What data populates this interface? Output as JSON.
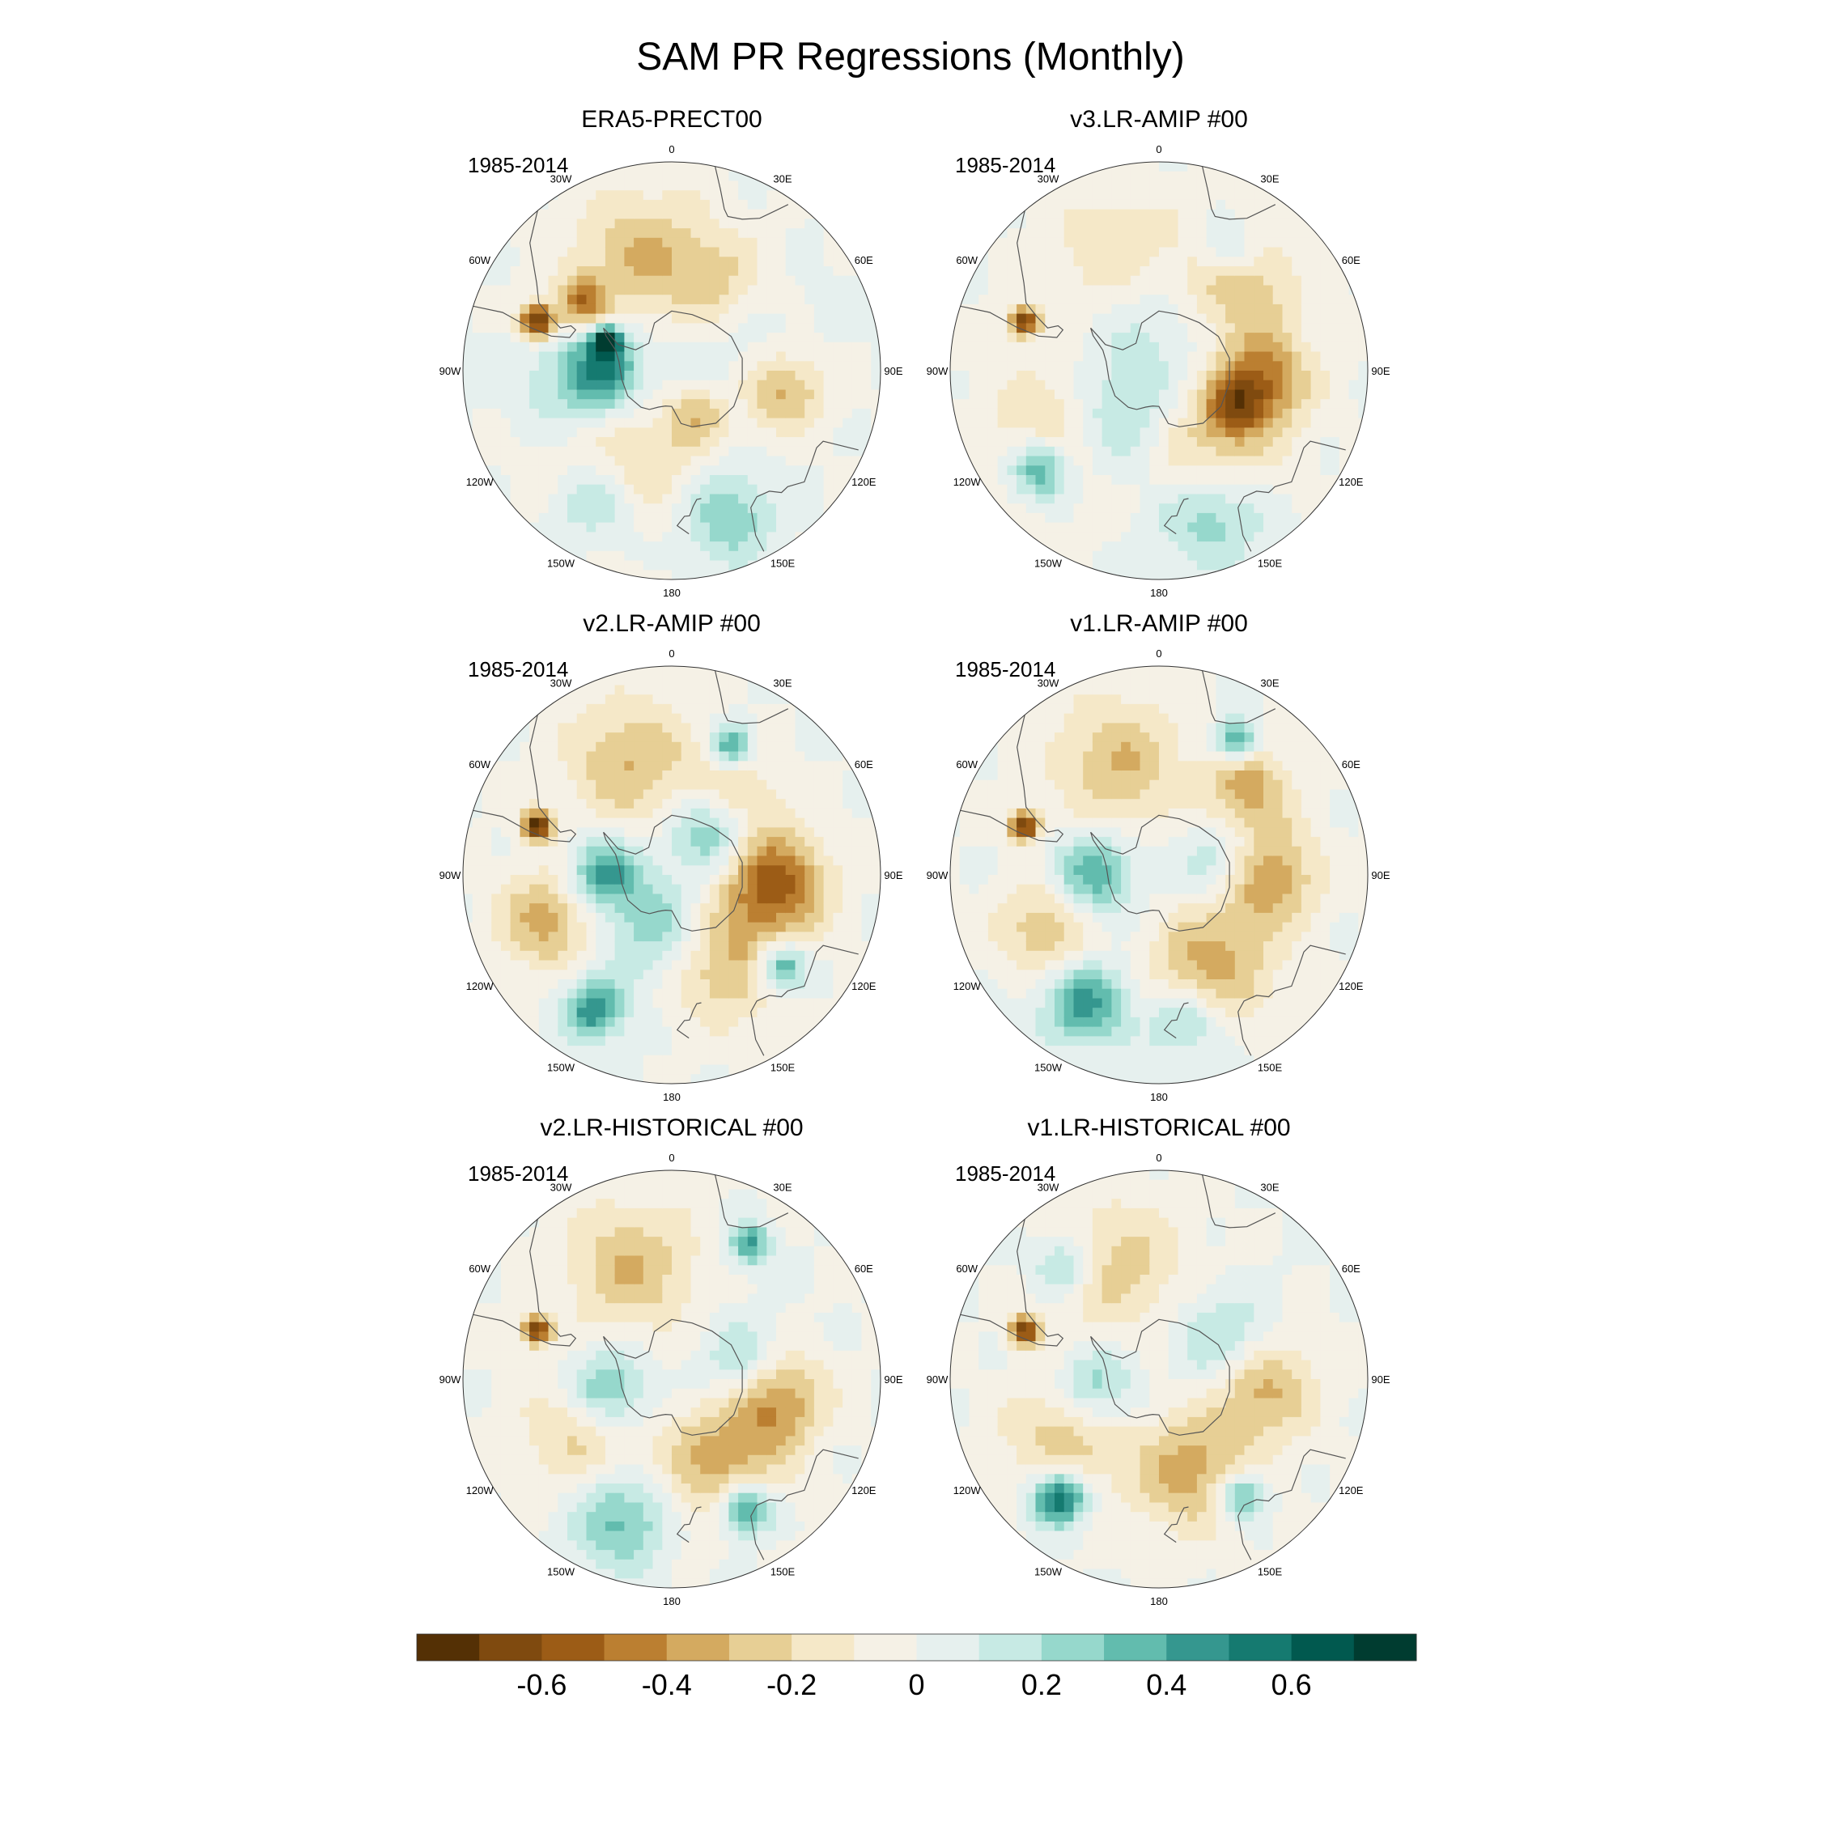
{
  "figure": {
    "title": "SAM PR Regressions (Monthly)"
  },
  "chart_data": {
    "type": "polar-contour-maps",
    "projection": "south-polar-stereographic",
    "variable": "PR",
    "lon_labels": [
      "0",
      "30E",
      "60E",
      "90E",
      "120E",
      "150E",
      "180",
      "150W",
      "120W",
      "90W",
      "60W",
      "30W"
    ],
    "colorbar": {
      "ticks": [
        "-0.6",
        "-0.4",
        "-0.2",
        "0",
        "0.2",
        "0.4",
        "0.6"
      ],
      "levels": [
        -0.7,
        -0.6,
        -0.5,
        -0.4,
        -0.3,
        -0.2,
        -0.1,
        0,
        0.1,
        0.2,
        0.3,
        0.4,
        0.5,
        0.6,
        0.7
      ],
      "colors": [
        "#543005",
        "#7f4a0f",
        "#9c5c16",
        "#bb7f31",
        "#d4aa60",
        "#e7cf95",
        "#f5e8c8",
        "#f5f1e6",
        "#e6f0ee",
        "#c7eae4",
        "#96d8cc",
        "#62bcae",
        "#35978f",
        "#157a70",
        "#01594f",
        "#003c30"
      ]
    },
    "panels": [
      {
        "title": "ERA5-PRECT00",
        "period": "1985-2014",
        "features": [
          {
            "lat": -42,
            "lon": -70,
            "v": -0.75,
            "r": 0.06
          },
          {
            "lat": -52,
            "lon": -53,
            "v": -0.45,
            "r": 0.09
          },
          {
            "lat": -66,
            "lon": -66,
            "v": 0.7,
            "r": 0.05
          },
          {
            "lat": -50,
            "lon": -15,
            "v": -0.3,
            "r": 0.22
          },
          {
            "lat": -57,
            "lon": 30,
            "v": -0.25,
            "r": 0.18
          },
          {
            "lat": -52,
            "lon": 100,
            "v": -0.35,
            "r": 0.14
          },
          {
            "lat": -55,
            "lon": -150,
            "v": -0.3,
            "r": 0.25
          },
          {
            "lat": -60,
            "lon": -100,
            "v": 0.3,
            "r": 0.2
          },
          {
            "lat": -68,
            "lon": -90,
            "v": 0.35,
            "r": 0.12
          },
          {
            "lat": -40,
            "lon": -150,
            "v": 0.35,
            "r": 0.15
          },
          {
            "lat": -38,
            "lon": 160,
            "v": 0.3,
            "r": 0.16
          },
          {
            "lat": -65,
            "lon": 60,
            "v": 0.12,
            "r": 0.25
          },
          {
            "lat": -72,
            "lon": 150,
            "v": -0.25,
            "r": 0.1
          }
        ]
      },
      {
        "title": "v3.LR-AMIP  #00",
        "period": "1985-2014",
        "features": [
          {
            "lat": -42,
            "lon": -70,
            "v": -0.7,
            "r": 0.05
          },
          {
            "lat": -55,
            "lon": 95,
            "v": -0.45,
            "r": 0.16
          },
          {
            "lat": -52,
            "lon": 40,
            "v": -0.35,
            "r": 0.2
          },
          {
            "lat": -50,
            "lon": -20,
            "v": -0.25,
            "r": 0.22
          },
          {
            "lat": -57,
            "lon": 150,
            "v": -0.3,
            "r": 0.22
          },
          {
            "lat": -62,
            "lon": 115,
            "v": -0.35,
            "r": 0.1
          },
          {
            "lat": -50,
            "lon": -120,
            "v": -0.25,
            "r": 0.22
          },
          {
            "lat": -70,
            "lon": 0,
            "v": 0.2,
            "r": 0.25
          },
          {
            "lat": -68,
            "lon": -140,
            "v": 0.3,
            "r": 0.18
          },
          {
            "lat": -38,
            "lon": -130,
            "v": 0.5,
            "r": 0.1
          },
          {
            "lat": -40,
            "lon": 160,
            "v": 0.35,
            "r": 0.18
          },
          {
            "lat": -43,
            "lon": 30,
            "v": 0.3,
            "r": 0.1
          }
        ]
      },
      {
        "title": "v2.LR-AMIP  #00",
        "period": "1985-2014",
        "features": [
          {
            "lat": -42,
            "lon": -70,
            "v": -0.8,
            "r": 0.05
          },
          {
            "lat": -55,
            "lon": 95,
            "v": -0.55,
            "r": 0.17
          },
          {
            "lat": -57,
            "lon": 150,
            "v": -0.35,
            "r": 0.2
          },
          {
            "lat": -50,
            "lon": -20,
            "v": -0.3,
            "r": 0.22
          },
          {
            "lat": -45,
            "lon": -110,
            "v": -0.35,
            "r": 0.16
          },
          {
            "lat": -58,
            "lon": 40,
            "v": -0.25,
            "r": 0.16
          },
          {
            "lat": -68,
            "lon": -90,
            "v": 0.45,
            "r": 0.12
          },
          {
            "lat": -70,
            "lon": 40,
            "v": 0.4,
            "r": 0.14
          },
          {
            "lat": -70,
            "lon": -170,
            "v": 0.3,
            "r": 0.18
          },
          {
            "lat": -38,
            "lon": -150,
            "v": 0.5,
            "r": 0.1
          },
          {
            "lat": -42,
            "lon": 130,
            "v": 0.5,
            "r": 0.08
          },
          {
            "lat": -42,
            "lon": 25,
            "v": 0.45,
            "r": 0.07
          }
        ]
      },
      {
        "title": "v1.LR-AMIP  #00",
        "period": "1985-2014",
        "features": [
          {
            "lat": -42,
            "lon": -70,
            "v": -0.75,
            "r": 0.05
          },
          {
            "lat": -55,
            "lon": 90,
            "v": -0.45,
            "r": 0.17
          },
          {
            "lat": -55,
            "lon": 150,
            "v": -0.35,
            "r": 0.2
          },
          {
            "lat": -50,
            "lon": -20,
            "v": -0.3,
            "r": 0.22
          },
          {
            "lat": -48,
            "lon": 45,
            "v": -0.35,
            "r": 0.14
          },
          {
            "lat": -48,
            "lon": -115,
            "v": -0.3,
            "r": 0.16
          },
          {
            "lat": -68,
            "lon": -90,
            "v": 0.4,
            "r": 0.14
          },
          {
            "lat": -68,
            "lon": 80,
            "v": 0.3,
            "r": 0.14
          },
          {
            "lat": -40,
            "lon": -150,
            "v": 0.45,
            "r": 0.14
          },
          {
            "lat": -38,
            "lon": 30,
            "v": 0.5,
            "r": 0.07
          },
          {
            "lat": -40,
            "lon": 170,
            "v": 0.3,
            "r": 0.12
          }
        ]
      },
      {
        "title": "v2.LR-HISTORICAL  #00",
        "period": "1985-2014",
        "features": [
          {
            "lat": -42,
            "lon": -70,
            "v": -0.7,
            "r": 0.05
          },
          {
            "lat": -55,
            "lon": 100,
            "v": -0.45,
            "r": 0.16
          },
          {
            "lat": -57,
            "lon": 150,
            "v": -0.35,
            "r": 0.2
          },
          {
            "lat": -50,
            "lon": -20,
            "v": -0.3,
            "r": 0.22
          },
          {
            "lat": -55,
            "lon": -120,
            "v": -0.25,
            "r": 0.2
          },
          {
            "lat": -68,
            "lon": -100,
            "v": 0.4,
            "r": 0.14
          },
          {
            "lat": -65,
            "lon": 80,
            "v": 0.3,
            "r": 0.14
          },
          {
            "lat": -40,
            "lon": 150,
            "v": 0.55,
            "r": 0.09
          },
          {
            "lat": -38,
            "lon": 30,
            "v": 0.45,
            "r": 0.07
          },
          {
            "lat": -40,
            "lon": -160,
            "v": 0.35,
            "r": 0.16
          }
        ]
      },
      {
        "title": "v1.LR-HISTORICAL  #00",
        "period": "1985-2014",
        "features": [
          {
            "lat": -42,
            "lon": -70,
            "v": -0.7,
            "r": 0.05
          },
          {
            "lat": -55,
            "lon": 95,
            "v": -0.35,
            "r": 0.17
          },
          {
            "lat": -57,
            "lon": 160,
            "v": -0.35,
            "r": 0.2
          },
          {
            "lat": -50,
            "lon": -20,
            "v": -0.25,
            "r": 0.22
          },
          {
            "lat": -55,
            "lon": -120,
            "v": -0.3,
            "r": 0.2
          },
          {
            "lat": -68,
            "lon": -100,
            "v": 0.35,
            "r": 0.14
          },
          {
            "lat": -65,
            "lon": 60,
            "v": 0.25,
            "r": 0.16
          },
          {
            "lat": -38,
            "lon": -140,
            "v": 0.65,
            "r": 0.09
          },
          {
            "lat": -42,
            "lon": 145,
            "v": 0.45,
            "r": 0.08
          },
          {
            "lat": -40,
            "lon": -40,
            "v": 0.3,
            "r": 0.1
          }
        ]
      }
    ]
  }
}
